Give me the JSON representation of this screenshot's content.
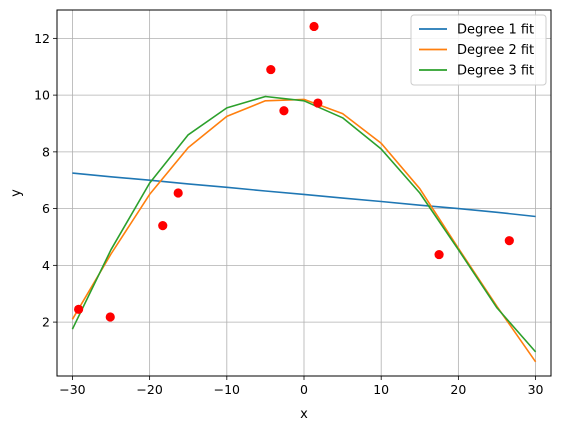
{
  "chart_data": {
    "type": "scatter",
    "title": "",
    "xlabel": "x",
    "ylabel": "y",
    "xlim": [
      -32,
      32
    ],
    "ylim": [
      0.1,
      13.0
    ],
    "xticks": [
      -30,
      -20,
      -10,
      0,
      10,
      20,
      30
    ],
    "xtick_labels": [
      "−30",
      "−20",
      "−10",
      "0",
      "10",
      "20",
      "30"
    ],
    "yticks": [
      2,
      4,
      6,
      8,
      10,
      12
    ],
    "ytick_labels": [
      "2",
      "4",
      "6",
      "8",
      "10",
      "12"
    ],
    "grid": true,
    "legend_position": "top-right",
    "points": {
      "x": [
        -29.2,
        -25.1,
        -18.3,
        -16.3,
        -4.3,
        -2.6,
        1.3,
        1.8,
        17.5,
        26.6
      ],
      "y": [
        2.45,
        2.18,
        5.4,
        6.55,
        10.9,
        9.45,
        12.42,
        9.72,
        4.38,
        4.87
      ],
      "color": "#ff0000"
    },
    "series": [
      {
        "name": "Degree 1 fit",
        "color": "#1f77b4",
        "x": [
          -30,
          -25,
          -20,
          -15,
          -10,
          -5,
          0,
          5,
          10,
          15,
          20,
          25,
          30
        ],
        "y": [
          7.25,
          7.12,
          7.0,
          6.87,
          6.75,
          6.62,
          6.5,
          6.37,
          6.25,
          6.12,
          6.0,
          5.87,
          5.72
        ]
      },
      {
        "name": "Degree 2 fit",
        "color": "#ff7f0e",
        "x": [
          -30,
          -25,
          -20,
          -15,
          -10,
          -5,
          0,
          5,
          10,
          15,
          20,
          25,
          30
        ],
        "y": [
          2.1,
          4.4,
          6.5,
          8.15,
          9.25,
          9.8,
          9.85,
          9.35,
          8.3,
          6.7,
          4.6,
          2.55,
          0.6
        ]
      },
      {
        "name": "Degree 3 fit",
        "color": "#2ca02c",
        "x": [
          -30,
          -25,
          -20,
          -15,
          -10,
          -5,
          0,
          5,
          10,
          15,
          20,
          25,
          30
        ],
        "y": [
          1.75,
          4.55,
          6.9,
          8.6,
          9.55,
          9.95,
          9.8,
          9.2,
          8.1,
          6.55,
          4.55,
          2.5,
          0.95
        ]
      }
    ]
  }
}
